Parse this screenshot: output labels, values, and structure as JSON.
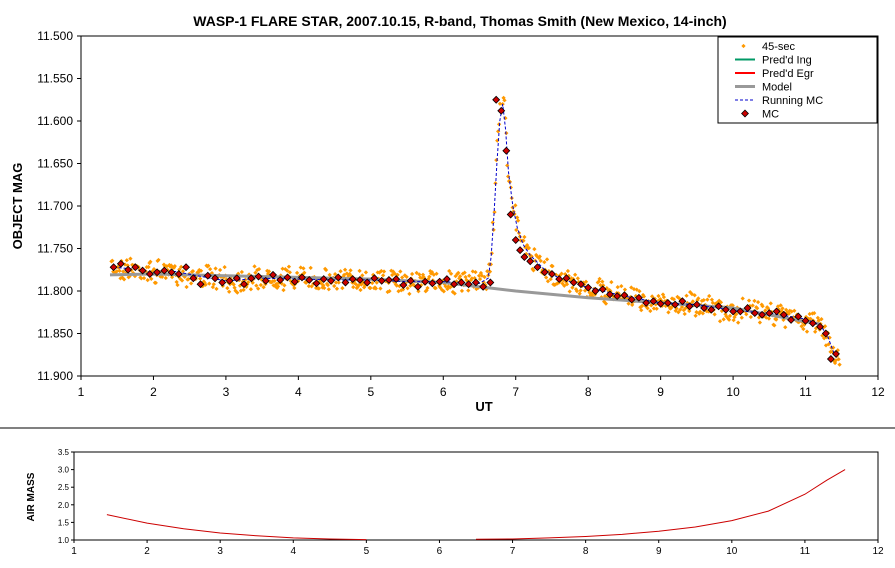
{
  "chart_data": [
    {
      "type": "scatter",
      "title": "WASP-1 FLARE STAR, 2007.10.15, R-band, Thomas Smith (New Mexico, 14-inch)",
      "xlabel": "UT",
      "ylabel": "OBJECT MAG",
      "xlim": [
        1,
        12
      ],
      "ylim": [
        11.9,
        11.5
      ],
      "y_reversed": true,
      "grid": false,
      "legend_position": "top-right",
      "x_ticks": [
        "1",
        "2",
        "3",
        "4",
        "5",
        "6",
        "7",
        "8",
        "9",
        "10",
        "11",
        "12"
      ],
      "y_ticks": [
        "11.500",
        "11.550",
        "11.600",
        "11.650",
        "11.700",
        "11.750",
        "11.800",
        "11.850",
        "11.900"
      ],
      "legend": [
        "45-sec",
        "Pred'd Ing",
        "Pred'd Egr",
        "Model",
        "Running MC",
        "MC"
      ],
      "colors": {
        "raw": "#ff9900",
        "mc": "#cc0000",
        "mc_edge": "#000000",
        "model": "#999999",
        "running": "#0000cc",
        "pred_ing": "#009966",
        "pred_egr": "#ff0000"
      },
      "series": [
        {
          "name": "Model",
          "x": [
            1.4,
            2,
            3,
            4,
            5,
            6,
            6.5,
            7,
            8,
            9,
            10,
            11,
            11.2
          ],
          "y": [
            11.781,
            11.78,
            11.782,
            11.784,
            11.786,
            11.79,
            11.795,
            11.8,
            11.808,
            11.814,
            11.82,
            11.836,
            11.839
          ]
        },
        {
          "name": "MC",
          "x": [
            1.45,
            1.55,
            1.65,
            1.75,
            1.85,
            1.95,
            2.05,
            2.15,
            2.25,
            2.35,
            2.45,
            2.55,
            2.65,
            2.75,
            2.85,
            2.95,
            3.05,
            3.15,
            3.25,
            3.35,
            3.45,
            3.55,
            3.65,
            3.75,
            3.85,
            3.95,
            4.05,
            4.15,
            4.25,
            4.35,
            4.45,
            4.55,
            4.65,
            4.75,
            4.85,
            4.95,
            5.05,
            5.15,
            5.25,
            5.35,
            5.45,
            5.55,
            5.65,
            5.75,
            5.85,
            5.95,
            6.05,
            6.15,
            6.25,
            6.35,
            6.45,
            6.55,
            6.65,
            6.73,
            6.8,
            6.87,
            6.93,
            7.0,
            7.06,
            7.12,
            7.2,
            7.3,
            7.4,
            7.5,
            7.6,
            7.7,
            7.8,
            7.9,
            8.0,
            8.1,
            8.2,
            8.3,
            8.4,
            8.5,
            8.6,
            8.7,
            8.8,
            8.9,
            9.0,
            9.1,
            9.2,
            9.3,
            9.4,
            9.5,
            9.6,
            9.7,
            9.8,
            9.9,
            10.0,
            10.1,
            10.2,
            10.3,
            10.4,
            10.5,
            10.6,
            10.7,
            10.8,
            10.9,
            11.0,
            11.1,
            11.2,
            11.28,
            11.35,
            11.42
          ],
          "y": [
            11.772,
            11.768,
            11.775,
            11.772,
            11.776,
            11.78,
            11.778,
            11.776,
            11.778,
            11.78,
            11.772,
            11.785,
            11.792,
            11.782,
            11.785,
            11.79,
            11.788,
            11.785,
            11.792,
            11.785,
            11.783,
            11.788,
            11.781,
            11.787,
            11.784,
            11.789,
            11.784,
            11.787,
            11.791,
            11.786,
            11.788,
            11.784,
            11.79,
            11.786,
            11.787,
            11.79,
            11.785,
            11.788,
            11.787,
            11.786,
            11.793,
            11.788,
            11.795,
            11.789,
            11.791,
            11.789,
            11.786,
            11.792,
            11.79,
            11.792,
            11.79,
            11.795,
            11.79,
            11.575,
            11.588,
            11.635,
            11.71,
            11.74,
            11.752,
            11.76,
            11.765,
            11.772,
            11.778,
            11.78,
            11.786,
            11.785,
            11.79,
            11.792,
            11.796,
            11.8,
            11.798,
            11.804,
            11.806,
            11.805,
            11.81,
            11.808,
            11.814,
            11.812,
            11.815,
            11.814,
            11.816,
            11.812,
            11.818,
            11.816,
            11.82,
            11.822,
            11.818,
            11.822,
            11.824,
            11.824,
            11.82,
            11.826,
            11.828,
            11.826,
            11.824,
            11.828,
            11.834,
            11.83,
            11.835,
            11.838,
            11.842,
            11.85,
            11.88,
            11.874
          ]
        },
        {
          "name": "Running MC",
          "x": [
            1.45,
            1.7,
            2.0,
            2.3,
            2.6,
            3.0,
            3.5,
            4.0,
            4.5,
            5.0,
            5.5,
            6.0,
            6.5,
            6.62,
            6.66,
            6.7,
            6.74,
            6.78,
            6.82,
            6.86,
            6.9,
            6.96,
            7.02,
            7.1,
            7.2,
            7.4,
            7.6,
            8.0,
            8.5,
            9.0,
            9.5,
            10.0,
            10.5,
            11.0,
            11.2,
            11.3,
            11.4,
            11.45
          ],
          "y": [
            11.772,
            11.774,
            11.778,
            11.777,
            11.782,
            11.788,
            11.785,
            11.786,
            11.787,
            11.787,
            11.789,
            11.789,
            11.791,
            11.785,
            11.76,
            11.71,
            11.65,
            11.6,
            11.58,
            11.61,
            11.66,
            11.7,
            11.725,
            11.745,
            11.758,
            11.775,
            11.785,
            11.796,
            11.806,
            11.814,
            11.816,
            11.823,
            11.826,
            11.833,
            11.84,
            11.852,
            11.875,
            11.88
          ]
        }
      ]
    },
    {
      "type": "line",
      "title": "",
      "xlabel": "",
      "ylabel": "AIR MASS",
      "xlim": [
        1,
        12
      ],
      "ylim": [
        1.0,
        3.5
      ],
      "grid": false,
      "x_ticks": [
        "1",
        "2",
        "3",
        "4",
        "5",
        "6",
        "7",
        "8",
        "9",
        "10",
        "11",
        "12"
      ],
      "y_ticks": [
        "1.0",
        "1.5",
        "2.0",
        "2.5",
        "3.0",
        "3.5"
      ],
      "colors": {
        "line": "#cc0000"
      },
      "series": [
        {
          "x": [
            1.45,
            2.0,
            2.5,
            3.0,
            3.5,
            4.0,
            4.5,
            5.0,
            6.5,
            7.0,
            7.5,
            8.0,
            8.5,
            9.0,
            9.5,
            10.0,
            10.5,
            11.0,
            11.3,
            11.55
          ],
          "y": [
            1.72,
            1.48,
            1.32,
            1.2,
            1.12,
            1.06,
            1.03,
            1.01,
            1.02,
            1.03,
            1.06,
            1.1,
            1.16,
            1.25,
            1.37,
            1.55,
            1.82,
            2.3,
            2.7,
            3.0
          ]
        }
      ]
    }
  ]
}
